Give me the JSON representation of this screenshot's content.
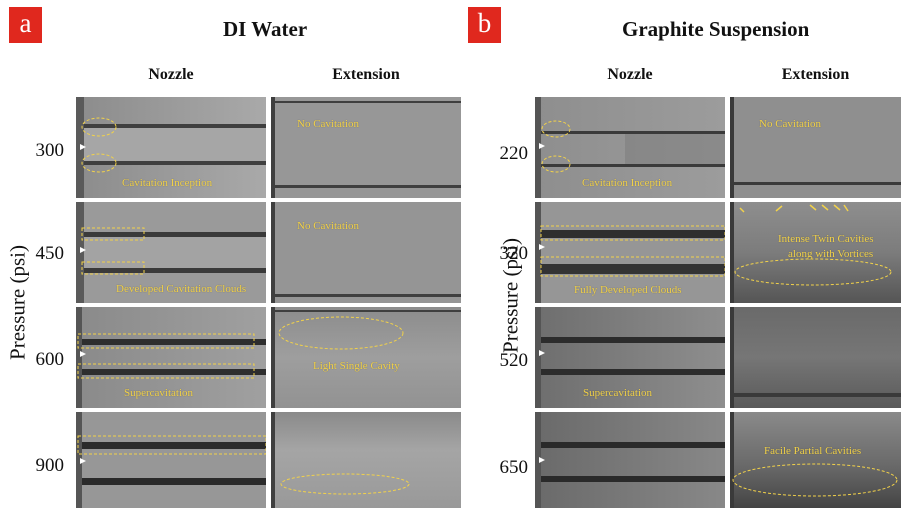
{
  "panel_a": {
    "badge": "a",
    "title": "DI Water",
    "columns": [
      "Nozzle",
      "Extension"
    ],
    "axis_label": "Pressure (psi)",
    "rows": [
      {
        "pressure": "300",
        "nozzle_annotation": "Cavitation Inception",
        "extension_annotation": "No Cavitation"
      },
      {
        "pressure": "450",
        "nozzle_annotation": "Developed Cavitation Clouds",
        "extension_annotation": "No Cavitation"
      },
      {
        "pressure": "600",
        "nozzle_annotation": "Supercavitation",
        "extension_annotation": "Light Single Cavity"
      },
      {
        "pressure": "900",
        "nozzle_annotation": "",
        "extension_annotation": ""
      }
    ]
  },
  "panel_b": {
    "badge": "b",
    "title": "Graphite Suspension",
    "columns": [
      "Nozzle",
      "Extension"
    ],
    "axis_label": "Pressure (psi)",
    "rows": [
      {
        "pressure": "220",
        "nozzle_annotation": "Cavitation Inception",
        "extension_annotation": "No Cavitation"
      },
      {
        "pressure": "320",
        "nozzle_annotation": "Fully Developed Clouds",
        "extension_annotation_line1": "Intense Twin Cavities",
        "extension_annotation_line2": "along with Vortices"
      },
      {
        "pressure": "520",
        "nozzle_annotation": "Supercavitation",
        "extension_annotation": ""
      },
      {
        "pressure": "650",
        "nozzle_annotation": "",
        "extension_annotation": "Facile Partial Cavities"
      }
    ]
  },
  "colors": {
    "badge_red": "#e0281e",
    "annotation_yellow": "#f2d24a",
    "image_gray": "#9d9d9d"
  }
}
